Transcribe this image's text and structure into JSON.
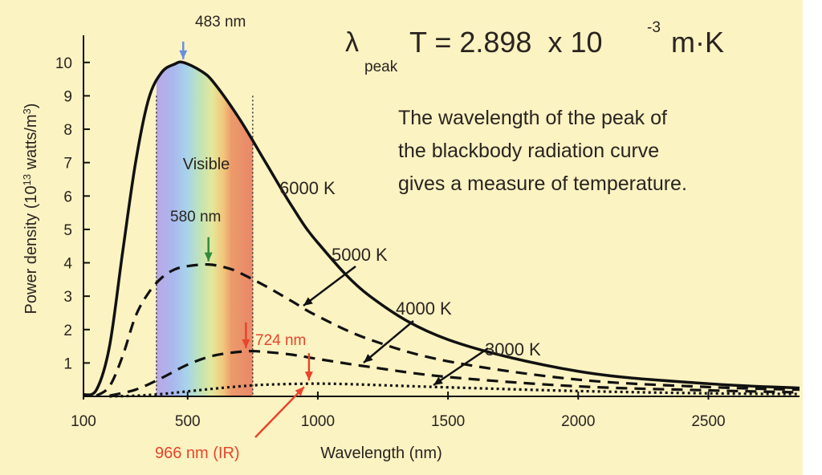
{
  "chart_data": {
    "type": "line",
    "xlabel": "Wavelength (nm)",
    "ylabel": "Power density (10^13 watts/m^3)",
    "xlim": [
      100,
      2850
    ],
    "ylim": [
      0,
      10.5
    ],
    "x_ticks": [
      100,
      500,
      1000,
      1500,
      2000,
      2500
    ],
    "y_ticks": [
      1,
      2,
      3,
      4,
      5,
      6,
      7,
      8,
      9,
      10
    ],
    "grid": false,
    "series": [
      {
        "name": "6000 K",
        "style": "solid",
        "temperature_K": 6000,
        "color": "#111111",
        "x": [
          100,
          150,
          200,
          250,
          300,
          350,
          400,
          450,
          483,
          550,
          600,
          700,
          800,
          900,
          1000,
          1200,
          1500,
          2000,
          2500,
          2850
        ],
        "y": [
          0.05,
          0.2,
          1.5,
          4.3,
          7.0,
          8.9,
          9.7,
          9.95,
          10.0,
          9.75,
          9.4,
          8.3,
          7.0,
          5.7,
          4.6,
          3.0,
          1.7,
          0.75,
          0.38,
          0.25
        ]
      },
      {
        "name": "5000 K",
        "style": "dashed",
        "temperature_K": 5000,
        "color": "#111111",
        "x": [
          150,
          200,
          250,
          300,
          350,
          400,
          450,
          500,
          580,
          650,
          700,
          800,
          900,
          1000,
          1200,
          1500,
          2000,
          2500,
          2850
        ],
        "y": [
          0.02,
          0.3,
          1.2,
          2.4,
          3.1,
          3.55,
          3.8,
          3.9,
          3.95,
          3.85,
          3.7,
          3.3,
          2.85,
          2.4,
          1.7,
          1.05,
          0.5,
          0.28,
          0.2
        ]
      },
      {
        "name": "4000 K",
        "style": "dashed",
        "temperature_K": 4000,
        "color": "#111111",
        "x": [
          200,
          300,
          400,
          500,
          600,
          724,
          800,
          900,
          1000,
          1200,
          1500,
          2000,
          2500,
          2850
        ],
        "y": [
          0.02,
          0.2,
          0.55,
          0.95,
          1.22,
          1.35,
          1.33,
          1.25,
          1.12,
          0.88,
          0.58,
          0.3,
          0.18,
          0.12
        ]
      },
      {
        "name": "3000 K",
        "style": "dotted",
        "temperature_K": 3000,
        "color": "#111111",
        "x": [
          200,
          300,
          400,
          500,
          600,
          700,
          800,
          966,
          1100,
          1300,
          1500,
          2000,
          2500,
          2850
        ],
        "y": [
          0.0,
          0.02,
          0.07,
          0.15,
          0.23,
          0.3,
          0.35,
          0.38,
          0.37,
          0.32,
          0.27,
          0.16,
          0.09,
          0.07
        ]
      }
    ],
    "visible_band": {
      "label": "Visible",
      "x": [
        380,
        750
      ]
    },
    "peaks": [
      {
        "label": "483 nm",
        "x": 483,
        "y": 10.0,
        "color": "#6a8fe0"
      },
      {
        "label": "580 nm",
        "x": 580,
        "y": 3.95,
        "color": "#2e8b3a"
      },
      {
        "label": "724 nm",
        "x": 724,
        "y": 1.35,
        "color": "#e8452a"
      },
      {
        "label": "966 nm (IR)",
        "x": 966,
        "y": 0.38,
        "color": "#e8452a"
      }
    ],
    "series_labels": [
      "6000 K",
      "5000 K",
      "4000 K",
      "3000 K"
    ]
  },
  "formula": {
    "lambda": "λ",
    "subscript": "peak",
    "body": "T = 2.898  x 10",
    "exponent": "-3",
    "units": "m·K"
  },
  "description": [
    "The wavelength of the peak of",
    "the blackbody radiation curve",
    "gives a measure of temperature."
  ],
  "colors": {
    "background": "#fbf3c2",
    "axis": "#111111",
    "text": "#2a2420",
    "ir_annotation": "#e8452a"
  }
}
